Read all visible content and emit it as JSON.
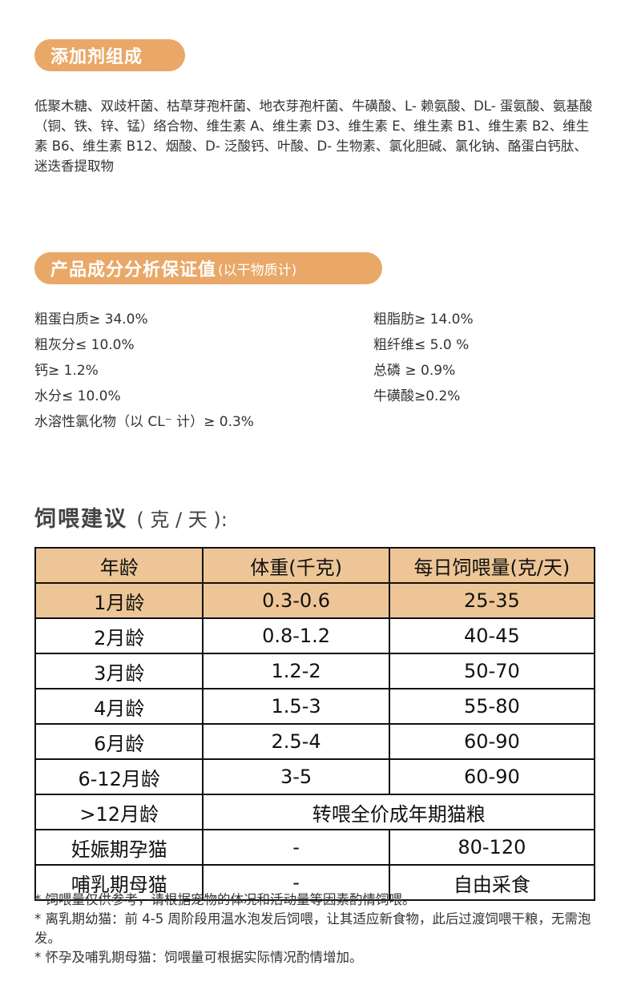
{
  "additives": {
    "title": "添加剂组成",
    "text": "低聚木糖、双歧杆菌、枯草芽孢杆菌、地衣芽孢杆菌、牛磺酸、L- 赖氨酸、DL- 蛋氨酸、氨基酸（铜、铁、锌、锰）络合物、维生素 A、维生素 D3、维生素 E、维生素 B1、维生素 B2、维生素 B6、维生素 B12、烟酸、D- 泛酸钙、叶酸、D- 生物素、氯化胆碱、氯化钠、酪蛋白钙肽、迷迭香提取物"
  },
  "analysis": {
    "title": "产品成分分析保证值",
    "subtitle": "(以干物质计)",
    "items": [
      "粗蛋白质≥ 34.0%",
      "粗脂肪≥ 14.0%",
      "粗灰分≤ 10.0%",
      "粗纤维≤ 5.0 %",
      "钙≥ 1.2%",
      "总磷 ≥ 0.9%",
      "水分≤ 10.0%",
      "牛磺酸≥0.2%",
      "水溶性氯化物（以 CL⁻ 计）≥ 0.3%"
    ]
  },
  "feeding": {
    "title": "饲喂建议",
    "unit": "( 克 / 天 ):",
    "headers": [
      "年龄",
      "体重(千克)",
      "每日饲喂量(克/天)"
    ],
    "rows": [
      [
        "1月龄",
        "0.3-0.6",
        "25-35"
      ],
      [
        "2月龄",
        "0.8-1.2",
        "40-45"
      ],
      [
        "3月龄",
        "1.2-2",
        "50-70"
      ],
      [
        "4月龄",
        "1.5-3",
        "55-80"
      ],
      [
        "6月龄",
        "2.5-4",
        "60-90"
      ],
      [
        "6-12月龄",
        "3-5",
        "60-90"
      ]
    ],
    "adult": [
      "&gt;12月龄",
      "转喂全价成年期猫粮"
    ],
    "pregnant": [
      "妊娠期孕猫",
      "-",
      "80-120"
    ],
    "nursing": [
      "哺乳期母猫",
      "-",
      "自由采食"
    ]
  },
  "notes": [
    "* 饲喂量仅供参考，请根据宠物的体况和活动量等因素酌情饲喂。",
    "* 离乳期幼猫：前 4-5 周阶段用温水泡发后饲喂，让其适应新食物，此后过渡饲喂干粮，无需泡发。",
    "* 怀孕及哺乳期母猫：饲喂量可根据实际情况酌情增加。"
  ]
}
